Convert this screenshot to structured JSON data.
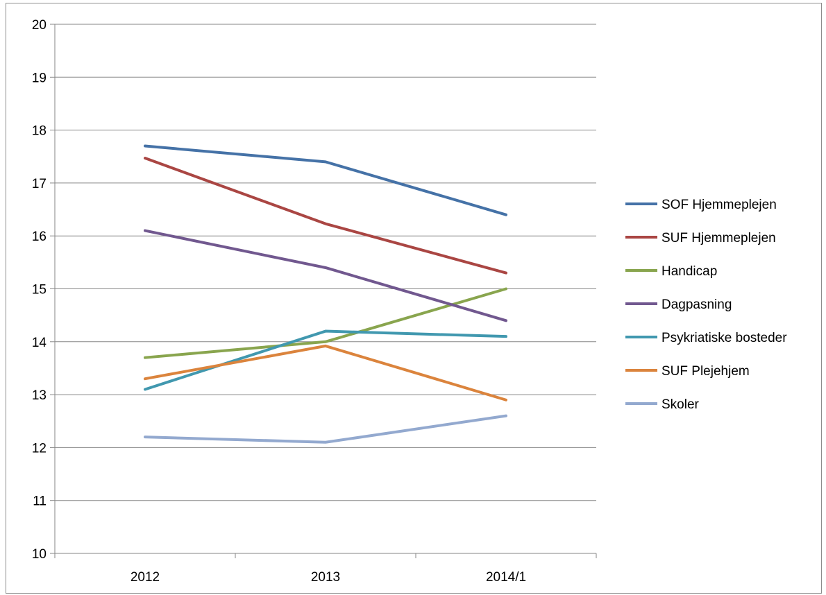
{
  "chart_data": {
    "type": "line",
    "title": "",
    "xlabel": "",
    "ylabel": "",
    "categories": [
      "2012",
      "2013",
      "2014/1"
    ],
    "ylim": [
      10,
      20
    ],
    "yticks": [
      "10",
      "11",
      "12",
      "13",
      "14",
      "15",
      "16",
      "17",
      "18",
      "19",
      "20"
    ],
    "grid": true,
    "legend_position": "right",
    "series": [
      {
        "name": "SOF Hjemmeplejen",
        "color": "#4572a7",
        "values": [
          17.7,
          17.4,
          16.4
        ]
      },
      {
        "name": "SUF Hjemmeplejen",
        "color": "#aa4643",
        "values": [
          17.47,
          16.23,
          15.3
        ]
      },
      {
        "name": "Handicap",
        "color": "#89a54e",
        "values": [
          13.7,
          14.0,
          15.0
        ]
      },
      {
        "name": "Dagpasning",
        "color": "#71588f",
        "values": [
          16.1,
          15.4,
          14.4
        ]
      },
      {
        "name": "Psykriatiske bosteder",
        "color": "#4198af",
        "values": [
          13.1,
          14.2,
          14.1
        ]
      },
      {
        "name": "SUF Plejehjem",
        "color": "#db843d",
        "values": [
          13.3,
          13.92,
          12.9
        ]
      },
      {
        "name": "Skoler",
        "color": "#93a9cf",
        "values": [
          12.2,
          12.1,
          12.6
        ]
      }
    ]
  }
}
